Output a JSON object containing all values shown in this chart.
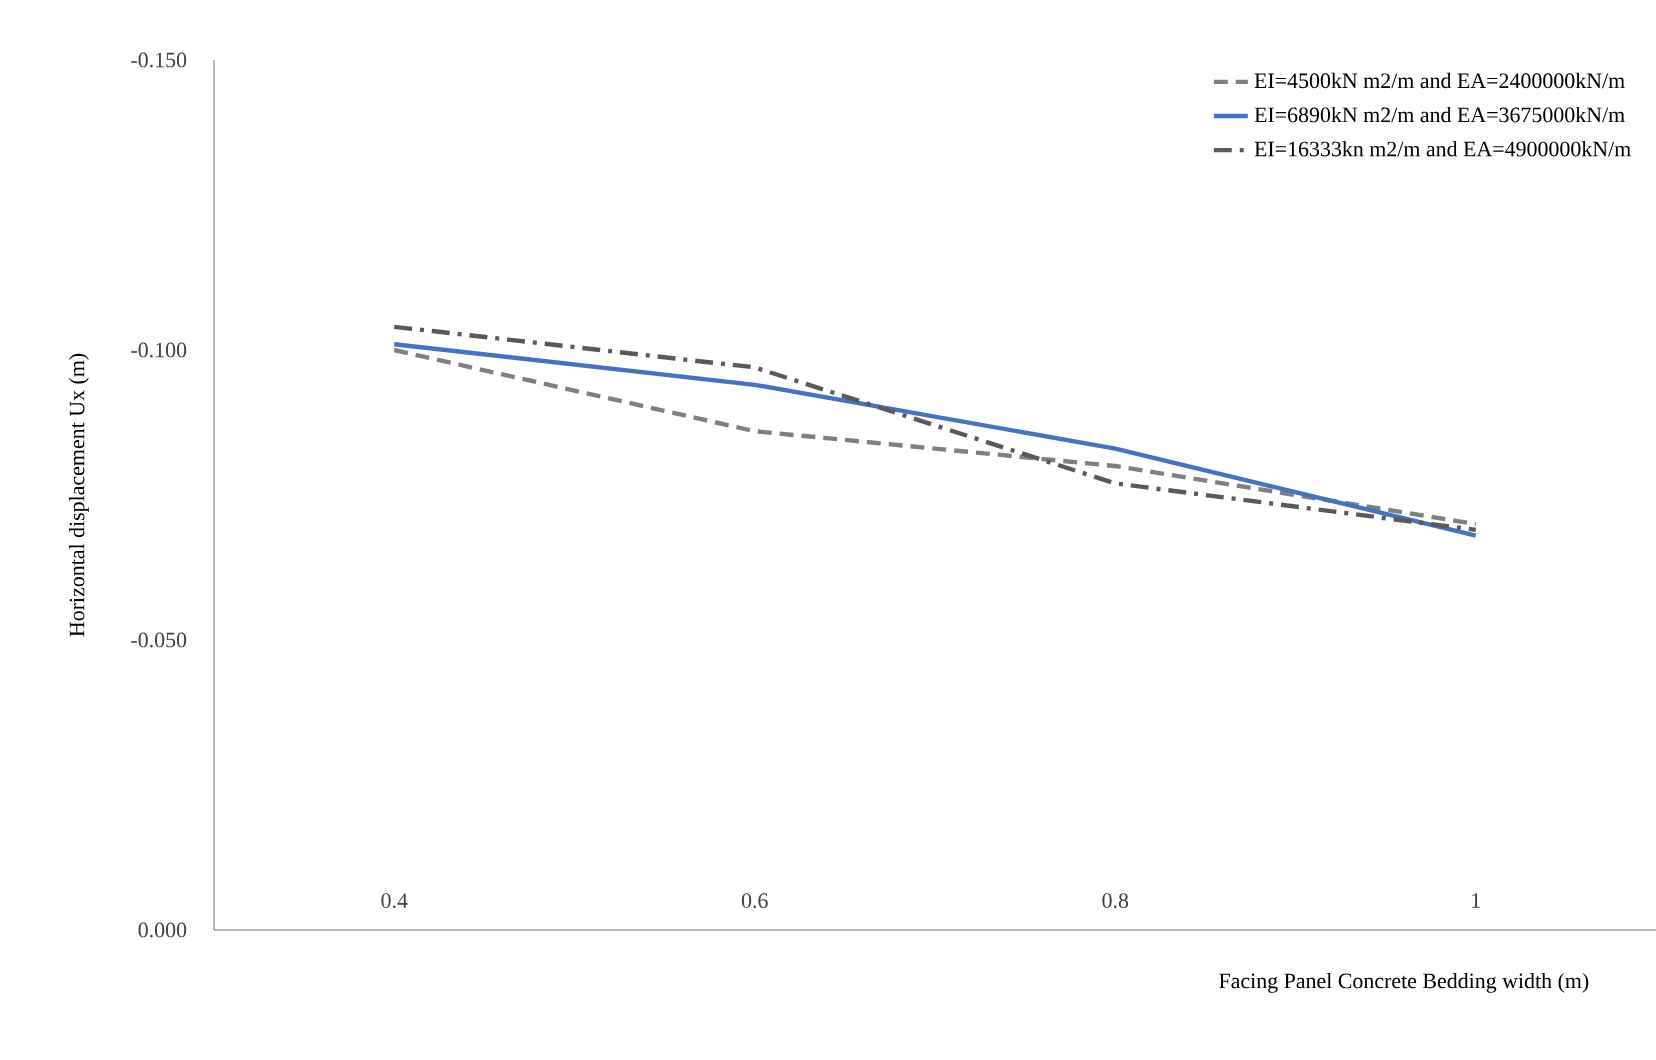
{
  "chart_data": {
    "type": "line",
    "xlabel": "Facing Panel Concrete Bedding width (m)",
    "ylabel": "Horizontal displacement Ux  (m)",
    "categories": [
      "0.4",
      "0.6",
      "0.8",
      "1"
    ],
    "ylim": [
      0,
      -0.15
    ],
    "yticks": [
      {
        "value": 0,
        "label": "0.000"
      },
      {
        "value": -0.05,
        "label": "-0.050"
      },
      {
        "value": -0.1,
        "label": "-0.100"
      },
      {
        "value": -0.15,
        "label": "-0.150"
      }
    ],
    "grid": false,
    "legend": "top right",
    "series": [
      {
        "name": "EI=4500kN m2/m and EA=2400000kN/m",
        "color": "#7f7f7f",
        "line_style": "dashed",
        "values": [
          -0.1,
          -0.086,
          -0.08,
          -0.07
        ]
      },
      {
        "name": "EI=6890kN m2/m and EA=3675000kN/m",
        "color": "#4472c4",
        "line_style": "solid",
        "values": [
          -0.101,
          -0.094,
          -0.083,
          -0.068
        ]
      },
      {
        "name": "EI=16333kn m2/m and EA=4900000kN/m",
        "color": "#595959",
        "line_style": "dashdot",
        "values": [
          -0.104,
          -0.097,
          -0.077,
          -0.069
        ]
      }
    ]
  }
}
